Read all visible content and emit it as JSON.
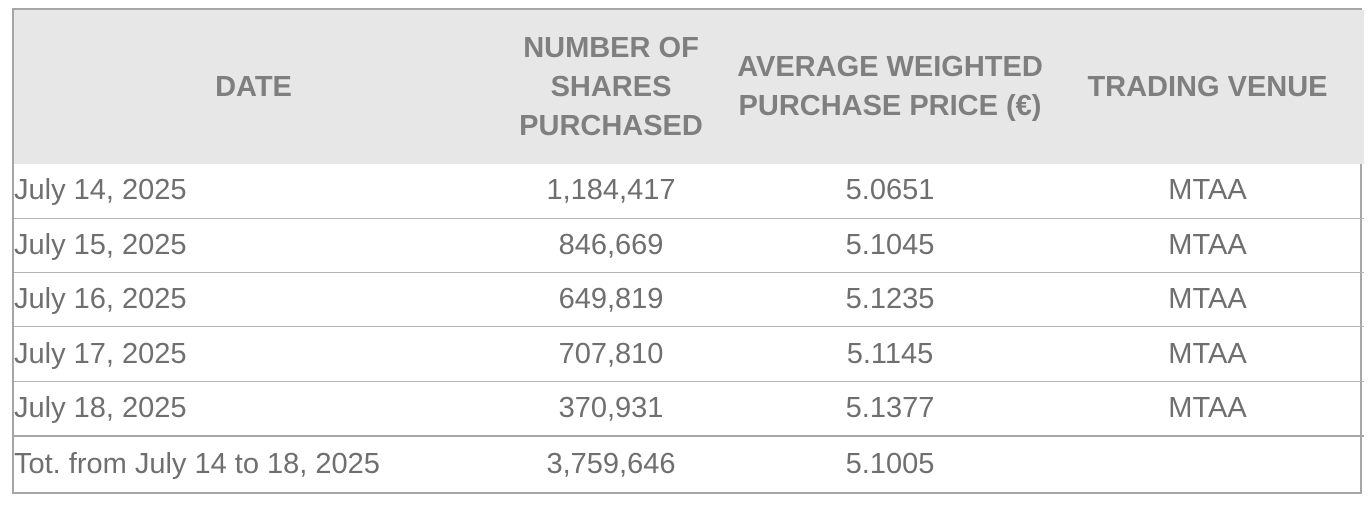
{
  "table": {
    "headers": {
      "date": "DATE",
      "shares": [
        "NUMBER OF",
        "SHARES",
        "PURCHASED"
      ],
      "price": [
        "AVERAGE WEIGHTED",
        "PURCHASE PRICE (€)"
      ],
      "venue": "TRADING VENUE"
    },
    "rows": [
      {
        "date": "July 14, 2025",
        "shares": "1,184,417",
        "price": "5.0651",
        "venue": "MTAA"
      },
      {
        "date": "July 15, 2025",
        "shares": "846,669",
        "price": "5.1045",
        "venue": "MTAA"
      },
      {
        "date": "July 16, 2025",
        "shares": "649,819",
        "price": "5.1235",
        "venue": "MTAA"
      },
      {
        "date": "July 17, 2025",
        "shares": "707,810",
        "price": "5.1145",
        "venue": "MTAA"
      },
      {
        "date": "July 18, 2025",
        "shares": "370,931",
        "price": "5.1377",
        "venue": "MTAA"
      }
    ],
    "total": {
      "label": "Tot. from July 14 to 18, 2025",
      "shares": "3,759,646",
      "price": "5.1005",
      "venue": ""
    }
  },
  "colors": {
    "header_bg": "#e7e7e7",
    "header_text": "#7f7f7f",
    "body_text": "#6f6f6f",
    "border": "#a6a6a6"
  }
}
